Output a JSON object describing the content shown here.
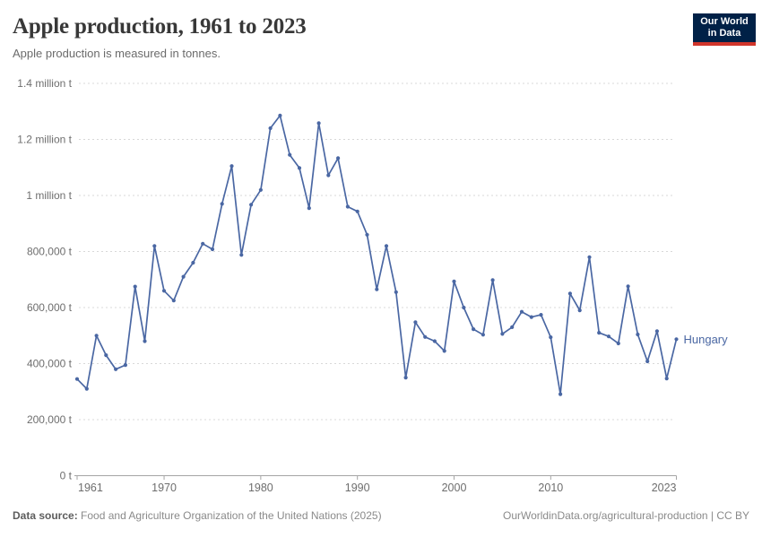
{
  "header": {
    "title": "Apple production, 1961 to 2023",
    "subtitle": "Apple production is measured in tonnes."
  },
  "logo": {
    "line1": "Our World",
    "line2": "in Data",
    "bg_color": "#002147",
    "accent_color": "#d1352b"
  },
  "chart_data": {
    "type": "line",
    "title": "Apple production, 1961 to 2023",
    "ylabel": "",
    "xlabel": "",
    "unit": "tonnes",
    "grid": true,
    "legend_position": "end-of-line",
    "xlim": [
      1961,
      2023
    ],
    "ylim": [
      0,
      1400000
    ],
    "x_ticks": [
      1961,
      1970,
      1980,
      1990,
      2000,
      2010,
      2023
    ],
    "y_ticks": [
      {
        "value": 0,
        "label": "0 t"
      },
      {
        "value": 200000,
        "label": "200,000 t"
      },
      {
        "value": 400000,
        "label": "400,000 t"
      },
      {
        "value": 600000,
        "label": "600,000 t"
      },
      {
        "value": 800000,
        "label": "800,000 t"
      },
      {
        "value": 1000000,
        "label": "1 million t"
      },
      {
        "value": 1200000,
        "label": "1.2 million t"
      },
      {
        "value": 1400000,
        "label": "1.4 million t"
      }
    ],
    "series": [
      {
        "name": "Hungary",
        "color": "#4a67a3",
        "years": [
          1961,
          1962,
          1963,
          1964,
          1965,
          1966,
          1967,
          1968,
          1969,
          1970,
          1971,
          1972,
          1973,
          1974,
          1975,
          1976,
          1977,
          1978,
          1979,
          1980,
          1981,
          1982,
          1983,
          1984,
          1985,
          1986,
          1987,
          1988,
          1989,
          1990,
          1991,
          1992,
          1993,
          1994,
          1995,
          1996,
          1997,
          1998,
          1999,
          2000,
          2001,
          2002,
          2003,
          2004,
          2005,
          2006,
          2007,
          2008,
          2009,
          2010,
          2011,
          2012,
          2013,
          2014,
          2015,
          2016,
          2017,
          2018,
          2019,
          2020,
          2021,
          2022,
          2023
        ],
        "values": [
          345000,
          310000,
          500000,
          430000,
          380000,
          395000,
          675000,
          480000,
          820000,
          660000,
          625000,
          710000,
          760000,
          828000,
          808000,
          970000,
          1105000,
          788000,
          967000,
          1020000,
          1240000,
          1285000,
          1145000,
          1098000,
          955000,
          1258000,
          1072000,
          1133000,
          960000,
          943000,
          860000,
          665000,
          820000,
          655000,
          350000,
          548000,
          495000,
          480000,
          445000,
          693000,
          600000,
          523000,
          503000,
          698000,
          506000,
          530000,
          585000,
          566000,
          574000,
          494000,
          291000,
          650000,
          590000,
          780000,
          510000,
          497000,
          472000,
          676000,
          504000,
          408000,
          516000,
          347000,
          487000
        ]
      }
    ]
  },
  "footer": {
    "source_label": "Data source:",
    "source_text": " Food and Agriculture Organization of the United Nations (2025)",
    "link_text": "OurWorldinData.org/agricultural-production | CC BY"
  }
}
